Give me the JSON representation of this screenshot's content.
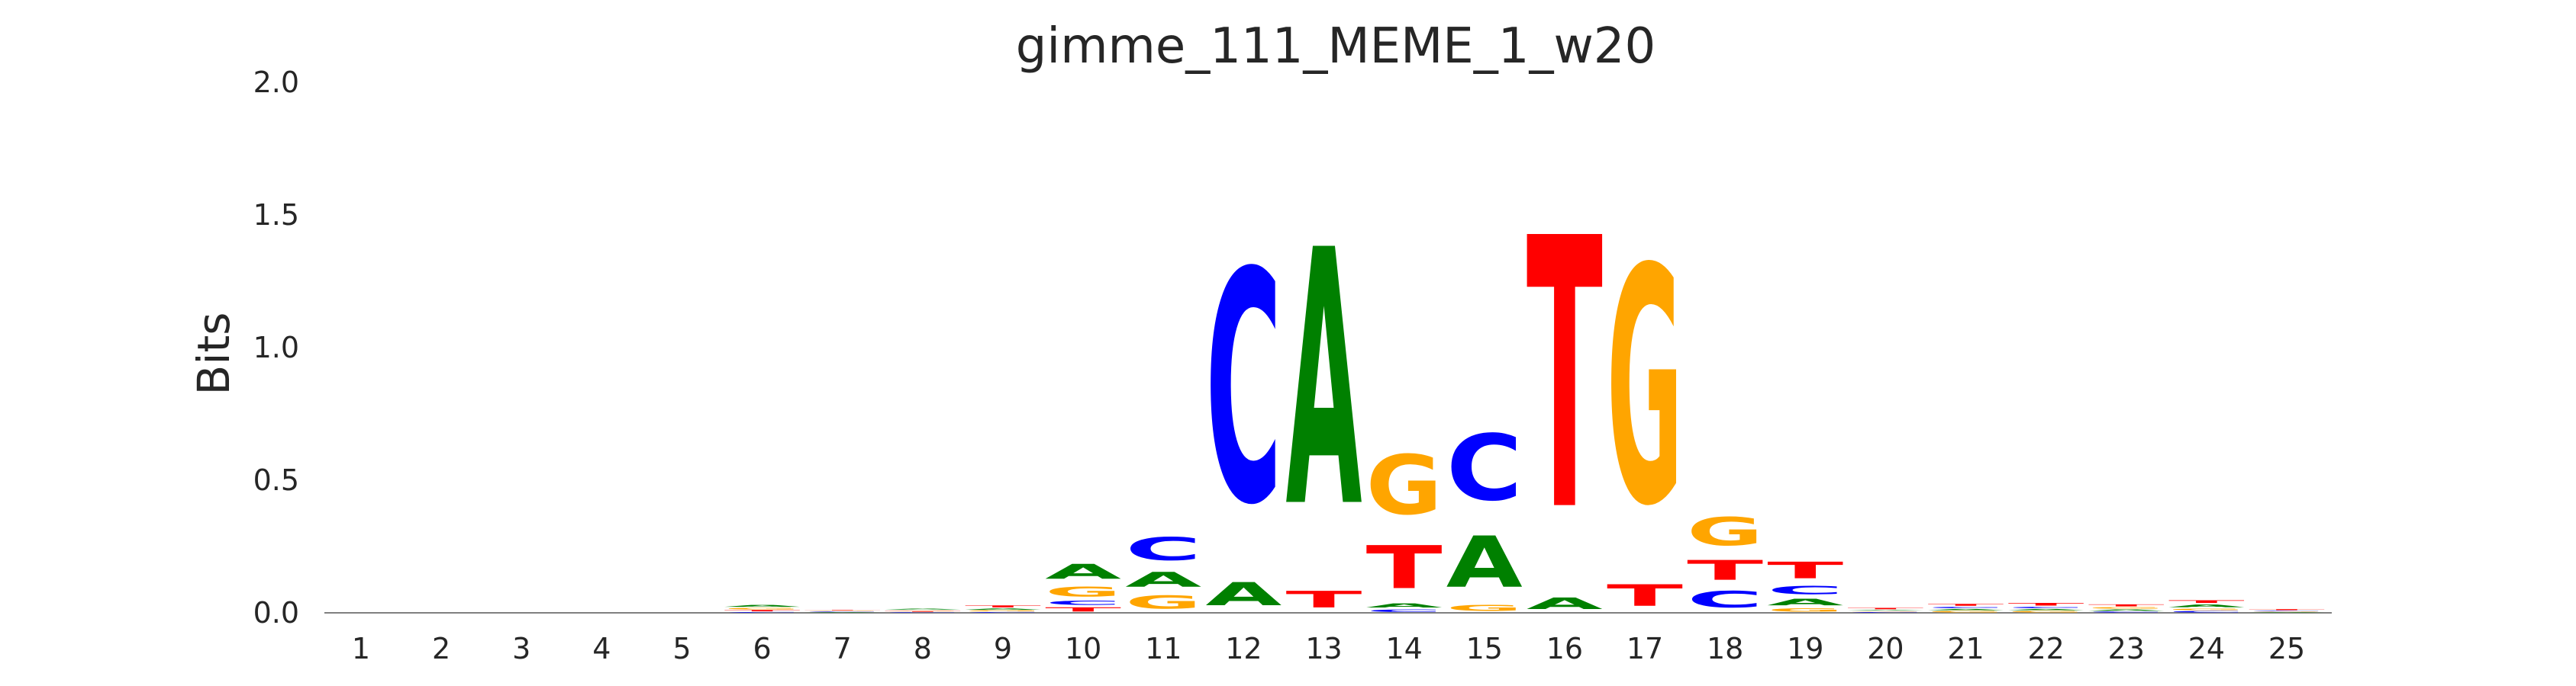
{
  "chart_data": {
    "type": "sequence-logo",
    "title": "gimme_111_MEME_1_w20",
    "ylabel": "Bits",
    "xlabel": "",
    "ylim": [
      0,
      2.0
    ],
    "yticks": [
      "0.0",
      "0.5",
      "1.0",
      "1.5",
      "2.0"
    ],
    "ytick_values": [
      0,
      0.5,
      1.0,
      1.5,
      2.0
    ],
    "positions": [
      "1",
      "2",
      "3",
      "4",
      "5",
      "6",
      "7",
      "8",
      "9",
      "10",
      "11",
      "12",
      "13",
      "14",
      "15",
      "16",
      "17",
      "18",
      "19",
      "20",
      "21",
      "22",
      "23",
      "24",
      "25"
    ],
    "colors": {
      "A": "#008000",
      "C": "#0000ff",
      "G": "#ffa500",
      "T": "#ff0000"
    },
    "stacks": [
      [],
      [],
      [],
      [],
      [],
      [
        {
          "base": "C",
          "bits": 0.004
        },
        {
          "base": "T",
          "bits": 0.008
        },
        {
          "base": "G",
          "bits": 0.008
        },
        {
          "base": "A",
          "bits": 0.012
        }
      ],
      [
        {
          "base": "A",
          "bits": 0.003
        },
        {
          "base": "C",
          "bits": 0.003
        },
        {
          "base": "G",
          "bits": 0.003
        },
        {
          "base": "T",
          "bits": 0.003
        }
      ],
      [
        {
          "base": "C",
          "bits": 0.003
        },
        {
          "base": "T",
          "bits": 0.004
        },
        {
          "base": "G",
          "bits": 0.004
        },
        {
          "base": "A",
          "bits": 0.006
        }
      ],
      [
        {
          "base": "C",
          "bits": 0.004
        },
        {
          "base": "G",
          "bits": 0.006
        },
        {
          "base": "A",
          "bits": 0.008
        },
        {
          "base": "T",
          "bits": 0.012
        }
      ],
      [
        {
          "base": "T",
          "bits": 0.025
        },
        {
          "base": "C",
          "bits": 0.025
        },
        {
          "base": "G",
          "bits": 0.06
        },
        {
          "base": "A",
          "bits": 0.09
        }
      ],
      [
        {
          "base": "G",
          "bits": 0.08
        },
        {
          "base": "A",
          "bits": 0.09
        },
        {
          "base": "C",
          "bits": 0.14
        }
      ],
      [
        {
          "base": "A",
          "bits": 0.14
        },
        {
          "base": "C",
          "bits": 1.4
        }
      ],
      [
        {
          "base": "T",
          "bits": 0.1
        },
        {
          "base": "A",
          "bits": 1.55
        }
      ],
      [
        {
          "base": "C",
          "bits": 0.015
        },
        {
          "base": "A",
          "bits": 0.025
        },
        {
          "base": "T",
          "bits": 0.26
        },
        {
          "base": "G",
          "bits": 0.36
        }
      ],
      [
        {
          "base": "G",
          "bits": 0.035
        },
        {
          "base": "A",
          "bits": 0.31
        },
        {
          "base": "C",
          "bits": 0.4
        }
      ],
      [
        {
          "base": "A",
          "bits": 0.07
        },
        {
          "base": "T",
          "bits": 1.64
        }
      ],
      [
        {
          "base": "T",
          "bits": 0.13
        },
        {
          "base": "G",
          "bits": 1.43
        }
      ],
      [
        {
          "base": "C",
          "bits": 0.1
        },
        {
          "base": "T",
          "bits": 0.12
        },
        {
          "base": "G",
          "bits": 0.17
        }
      ],
      [
        {
          "base": "G",
          "bits": 0.02
        },
        {
          "base": "A",
          "bits": 0.04
        },
        {
          "base": "C",
          "bits": 0.05
        },
        {
          "base": "T",
          "bits": 0.1
        }
      ],
      [
        {
          "base": "C",
          "bits": 0.004
        },
        {
          "base": "G",
          "bits": 0.004
        },
        {
          "base": "A",
          "bits": 0.004
        },
        {
          "base": "T",
          "bits": 0.008
        }
      ],
      [
        {
          "base": "G",
          "bits": 0.008
        },
        {
          "base": "A",
          "bits": 0.008
        },
        {
          "base": "C",
          "bits": 0.008
        },
        {
          "base": "T",
          "bits": 0.012
        }
      ],
      [
        {
          "base": "G",
          "bits": 0.008
        },
        {
          "base": "A",
          "bits": 0.008
        },
        {
          "base": "C",
          "bits": 0.008
        },
        {
          "base": "T",
          "bits": 0.016
        }
      ],
      [
        {
          "base": "C",
          "bits": 0.006
        },
        {
          "base": "A",
          "bits": 0.008
        },
        {
          "base": "G",
          "bits": 0.008
        },
        {
          "base": "T",
          "bits": 0.012
        }
      ],
      [
        {
          "base": "C",
          "bits": 0.008
        },
        {
          "base": "G",
          "bits": 0.01
        },
        {
          "base": "A",
          "bits": 0.016
        },
        {
          "base": "T",
          "bits": 0.016
        }
      ],
      [
        {
          "base": "A",
          "bits": 0.003
        },
        {
          "base": "G",
          "bits": 0.003
        },
        {
          "base": "C",
          "bits": 0.003
        },
        {
          "base": "T",
          "bits": 0.006
        }
      ]
    ]
  }
}
